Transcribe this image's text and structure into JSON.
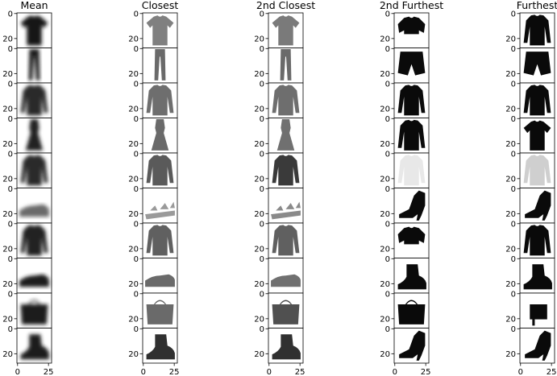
{
  "figure": {
    "columns": [
      {
        "id": "mean",
        "title": "Mean"
      },
      {
        "id": "closest",
        "title": "Closest"
      },
      {
        "id": "second_closest",
        "title": "2nd Closest"
      },
      {
        "id": "second_furthest",
        "title": "2nd Furthest"
      },
      {
        "id": "furthest",
        "title": "Furthest"
      }
    ],
    "rows": [
      {
        "class": "T-shirt/top",
        "cells": [
          {
            "shape": "tee",
            "shade": "#151515",
            "blur": true
          },
          {
            "shape": "tee",
            "shade": "#808080"
          },
          {
            "shape": "tee",
            "shade": "#7a7a7a"
          },
          {
            "shape": "croptop",
            "shade": "#0a0a0a"
          },
          {
            "shape": "longsleeve",
            "shade": "#0a0a0a"
          }
        ]
      },
      {
        "class": "Trouser",
        "cells": [
          {
            "shape": "trouser",
            "shade": "#1a1a1a",
            "blur": true
          },
          {
            "shape": "trouser",
            "shade": "#6a6a6a"
          },
          {
            "shape": "trouser",
            "shade": "#6a6a6a"
          },
          {
            "shape": "shorts",
            "shade": "#0a0a0a"
          },
          {
            "shape": "shorts",
            "shade": "#0a0a0a"
          }
        ]
      },
      {
        "class": "Pullover",
        "cells": [
          {
            "shape": "longsleeve",
            "shade": "#2a2a2a",
            "blur": true
          },
          {
            "shape": "longsleeve",
            "shade": "#6e6e6e"
          },
          {
            "shape": "longsleeve",
            "shade": "#6e6e6e"
          },
          {
            "shape": "longsleeve",
            "shade": "#0a0a0a"
          },
          {
            "shape": "longsleeve",
            "shade": "#0a0a0a"
          }
        ]
      },
      {
        "class": "Dress",
        "cells": [
          {
            "shape": "dress",
            "shade": "#202020",
            "blur": true
          },
          {
            "shape": "dress",
            "shade": "#6a6a6a"
          },
          {
            "shape": "dress",
            "shade": "#707070"
          },
          {
            "shape": "longsleeve",
            "shade": "#0a0a0a"
          },
          {
            "shape": "tee",
            "shade": "#0a0a0a"
          }
        ]
      },
      {
        "class": "Coat",
        "cells": [
          {
            "shape": "longsleeve",
            "shade": "#2a2a2a",
            "blur": true
          },
          {
            "shape": "longsleeve",
            "shade": "#5a5a5a"
          },
          {
            "shape": "longsleeve",
            "shade": "#3a3a3a"
          },
          {
            "shape": "longsleeve",
            "shade": "#e8e8e8"
          },
          {
            "shape": "longsleeve",
            "shade": "#cfcfcf"
          }
        ]
      },
      {
        "class": "Sandal",
        "cells": [
          {
            "shape": "shoe",
            "shade": "#6a6a6a",
            "blur": true
          },
          {
            "shape": "sandal",
            "shade": "#9a9a9a"
          },
          {
            "shape": "sandal",
            "shade": "#8a8a8a"
          },
          {
            "shape": "heel",
            "shade": "#0a0a0a"
          },
          {
            "shape": "heel",
            "shade": "#0a0a0a"
          }
        ]
      },
      {
        "class": "Shirt",
        "cells": [
          {
            "shape": "longsleeve",
            "shade": "#202020",
            "blur": true
          },
          {
            "shape": "longsleeve",
            "shade": "#606060"
          },
          {
            "shape": "longsleeve",
            "shade": "#606060"
          },
          {
            "shape": "croptop",
            "shade": "#0a0a0a"
          },
          {
            "shape": "longsleeve",
            "shade": "#0a0a0a"
          }
        ]
      },
      {
        "class": "Sneaker",
        "cells": [
          {
            "shape": "shoe",
            "shade": "#1a1a1a",
            "blur": true
          },
          {
            "shape": "shoe",
            "shade": "#6a6a6a"
          },
          {
            "shape": "shoe",
            "shade": "#707070"
          },
          {
            "shape": "boot",
            "shade": "#0a0a0a"
          },
          {
            "shape": "boot",
            "shade": "#0a0a0a"
          }
        ]
      },
      {
        "class": "Bag",
        "cells": [
          {
            "shape": "bag",
            "shade": "#1a1a1a",
            "blur": true
          },
          {
            "shape": "bag",
            "shade": "#6a6a6a"
          },
          {
            "shape": "bag",
            "shade": "#505050"
          },
          {
            "shape": "bag",
            "shade": "#0a0a0a"
          },
          {
            "shape": "smallbag",
            "shade": "#0a0a0a"
          }
        ]
      },
      {
        "class": "Ankle boot",
        "cells": [
          {
            "shape": "boot",
            "shade": "#1a1a1a",
            "blur": true
          },
          {
            "shape": "boot",
            "shade": "#303030"
          },
          {
            "shape": "boot",
            "shade": "#303030"
          },
          {
            "shape": "heel",
            "shade": "#0a0a0a"
          },
          {
            "shape": "heel",
            "shade": "#0a0a0a"
          }
        ]
      }
    ],
    "y_tick_labels": [
      "0",
      "20"
    ],
    "x_tick_labels": [
      "0",
      "25"
    ]
  }
}
